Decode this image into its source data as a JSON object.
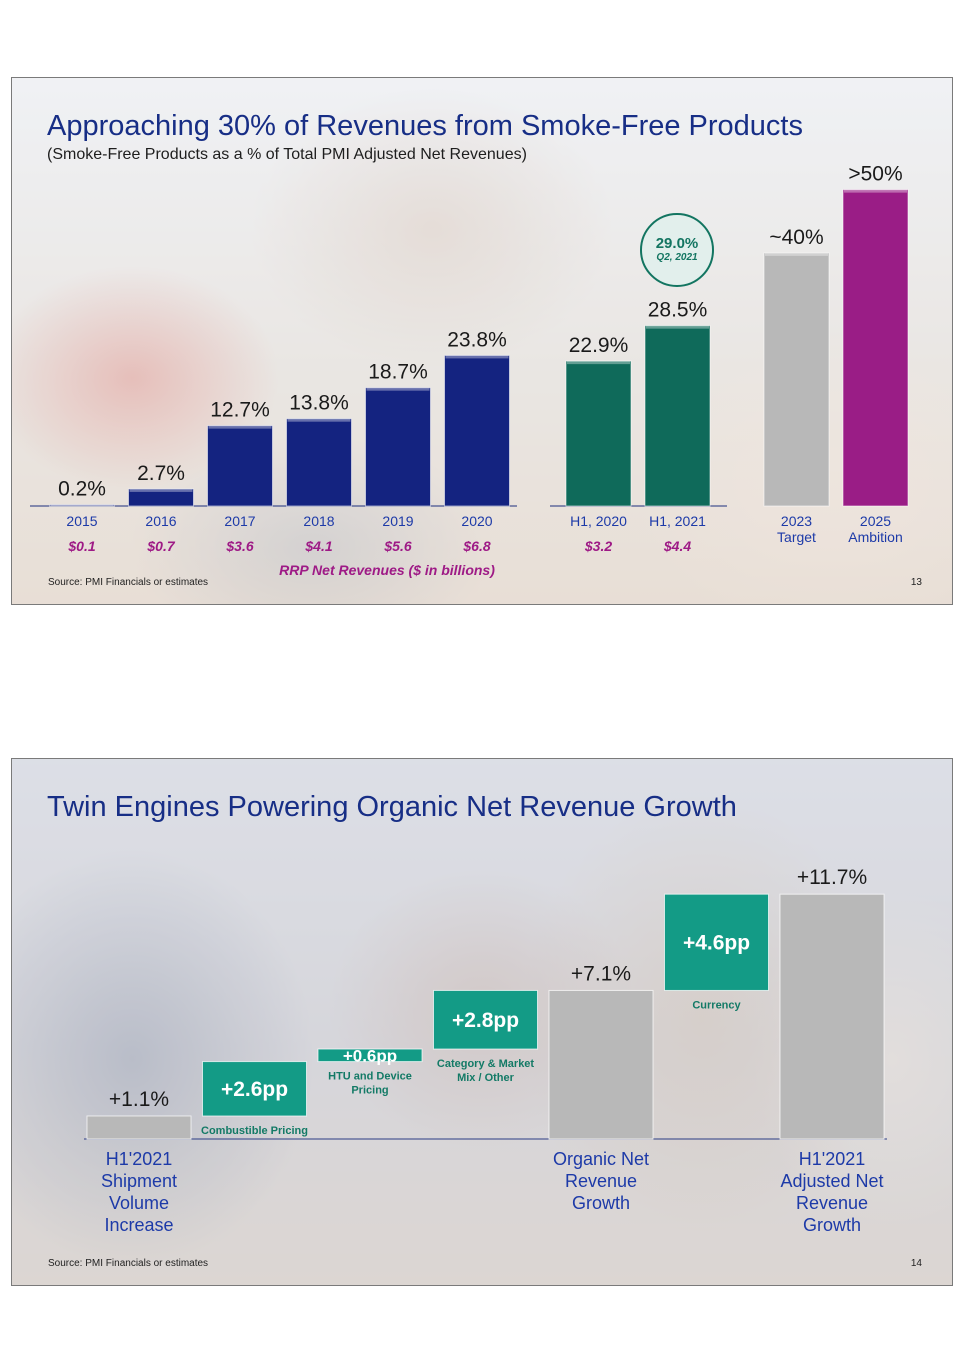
{
  "slides": [
    {
      "title": "Approaching 30% of Revenues from Smoke-Free Products",
      "subtitle": "(Smoke-Free Products as a % of Total PMI Adjusted Net Revenues)",
      "source": "Source: PMI Financials or estimates",
      "page_number": "13",
      "callout": {
        "value": "29.0%",
        "label": "Q2, 2021"
      },
      "rrp_caption": "RRP Net Revenues ($ in billions)"
    },
    {
      "title": "Twin Engines Powering Organic Net Revenue Growth",
      "source": "Source: PMI Financials or estimates",
      "page_number": "14"
    }
  ],
  "colors": {
    "navy": "#142380",
    "green": "#0f6a5a",
    "gray": "#b8b8b8",
    "magenta": "#9a1d86",
    "teal": "#139b86",
    "title_blue": "#172e86"
  },
  "chart_data": [
    {
      "type": "bar",
      "title": "Approaching 30% of Revenues from Smoke-Free Products",
      "subtitle": "(Smoke-Free Products as a % of Total PMI Adjusted Net Revenues)",
      "ylim": [
        0,
        55
      ],
      "groups": [
        {
          "categories": [
            "2015",
            "2016",
            "2017",
            "2018",
            "2019",
            "2020"
          ],
          "values": [
            0.2,
            2.7,
            12.7,
            13.8,
            18.7,
            23.8
          ],
          "value_labels": [
            "0.2%",
            "2.7%",
            "12.7%",
            "13.8%",
            "18.7%",
            "23.8%"
          ],
          "sub_labels": [
            "$0.1",
            "$0.7",
            "$3.6",
            "$4.1",
            "$5.6",
            "$6.8"
          ],
          "color": "#142380"
        },
        {
          "categories": [
            "H1, 2020",
            "H1, 2021"
          ],
          "values": [
            22.9,
            28.5
          ],
          "value_labels": [
            "22.9%",
            "28.5%"
          ],
          "sub_labels": [
            "$3.2",
            "$4.4"
          ],
          "color": "#0f6a5a"
        },
        {
          "categories": [
            [
              "2023",
              "Target"
            ],
            [
              "2025",
              "Ambition"
            ]
          ],
          "values": [
            40,
            50
          ],
          "value_labels": [
            "~40%",
            ">50%"
          ],
          "colors": [
            "#b8b8b8",
            "#9a1d86"
          ]
        }
      ],
      "annotations": [
        "29.0% Q2, 2021",
        "RRP Net Revenues ($ in billions)"
      ]
    },
    {
      "type": "bar",
      "subtype": "waterfall",
      "title": "Twin Engines Powering Organic Net Revenue Growth",
      "ylim": [
        0,
        13
      ],
      "steps": [
        {
          "kind": "total",
          "value": 1.1,
          "start": 0,
          "label": "+1.1%",
          "category": [
            "H1'2021",
            "Shipment",
            "Volume",
            "Increase"
          ],
          "color": "#b8b8b8"
        },
        {
          "kind": "delta",
          "value": 2.6,
          "start": 1.1,
          "label": "+2.6pp",
          "caption": [
            "Combustible Pricing"
          ],
          "color": "#139b86"
        },
        {
          "kind": "delta",
          "value": 0.6,
          "start": 3.7,
          "label": "+0.6pp",
          "caption": [
            "HTU and Device",
            "Pricing"
          ],
          "color": "#139b86"
        },
        {
          "kind": "delta",
          "value": 2.8,
          "start": 4.3,
          "label": "+2.8pp",
          "caption": [
            "Category & Market",
            "Mix / Other"
          ],
          "color": "#139b86"
        },
        {
          "kind": "total",
          "value": 7.1,
          "start": 0,
          "label": "+7.1%",
          "category": [
            "Organic Net",
            "Revenue",
            "Growth"
          ],
          "color": "#b8b8b8"
        },
        {
          "kind": "delta",
          "value": 4.6,
          "start": 7.1,
          "label": "+4.6pp",
          "caption": [
            "Currency"
          ],
          "color": "#139b86"
        },
        {
          "kind": "total",
          "value": 11.7,
          "start": 0,
          "label": "+11.7%",
          "category": [
            "H1'2021",
            "Adjusted Net",
            "Revenue",
            "Growth"
          ],
          "color": "#b8b8b8"
        }
      ]
    }
  ]
}
